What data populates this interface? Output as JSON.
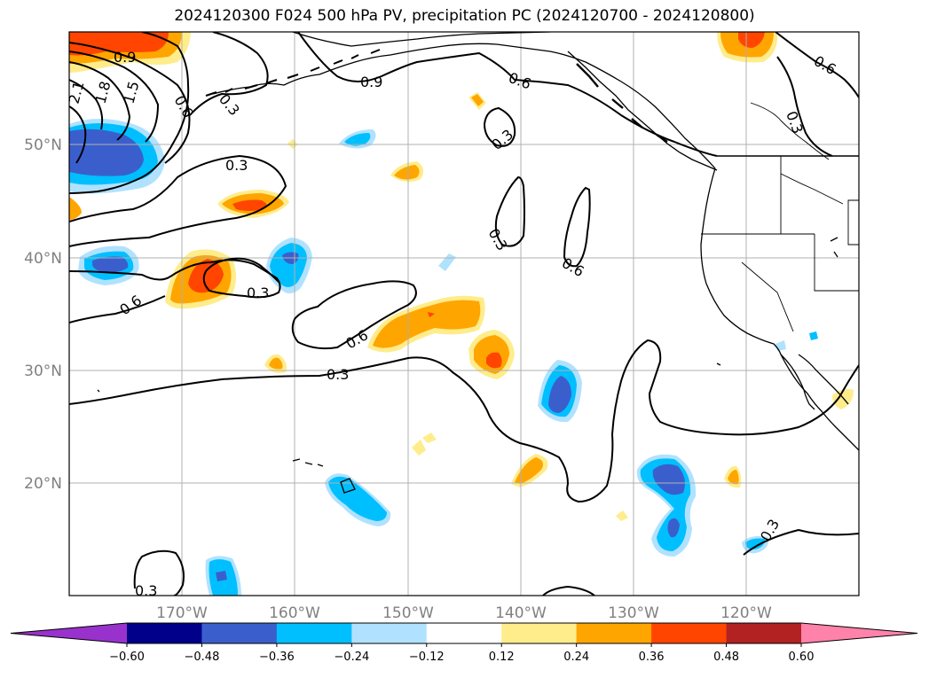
{
  "title": "2024120300 F024 500 hPa PV, precipitation PC (2024120700 - 2024120800)",
  "longitude_labels": [
    "170°W",
    "160°W",
    "150°W",
    "140°W",
    "130°W",
    "120°W"
  ],
  "latitude_labels": [
    "50°N",
    "40°N",
    "30°N",
    "20°N"
  ],
  "contour_labels": [
    "0.9",
    "2.1",
    "1.8",
    "1.5",
    "0.6",
    "0.3",
    "0.9",
    "0.6",
    "0.6",
    "0.3",
    "0.3",
    "0.3",
    "0.6",
    "0.3",
    "0.6",
    "0.6",
    "0.3",
    "0.3",
    "0.3",
    "0.3"
  ],
  "colorbar": {
    "ticks": [
      "−0.60",
      "−0.48",
      "−0.36",
      "−0.24",
      "−0.12",
      "0.12",
      "0.24",
      "0.36",
      "0.48",
      "0.60"
    ],
    "colors": [
      "#9932cc",
      "#00008b",
      "#3a5fcd",
      "#00bfff",
      "#b0e2ff",
      "#ffffff",
      "#ffec8b",
      "#ffa500",
      "#ff4500",
      "#b22222",
      "#ff82ab"
    ]
  },
  "colors": {
    "frame": "#000000",
    "gridline": "#b0b0b0",
    "contour": "#000000",
    "tick_label": "#808080"
  }
}
